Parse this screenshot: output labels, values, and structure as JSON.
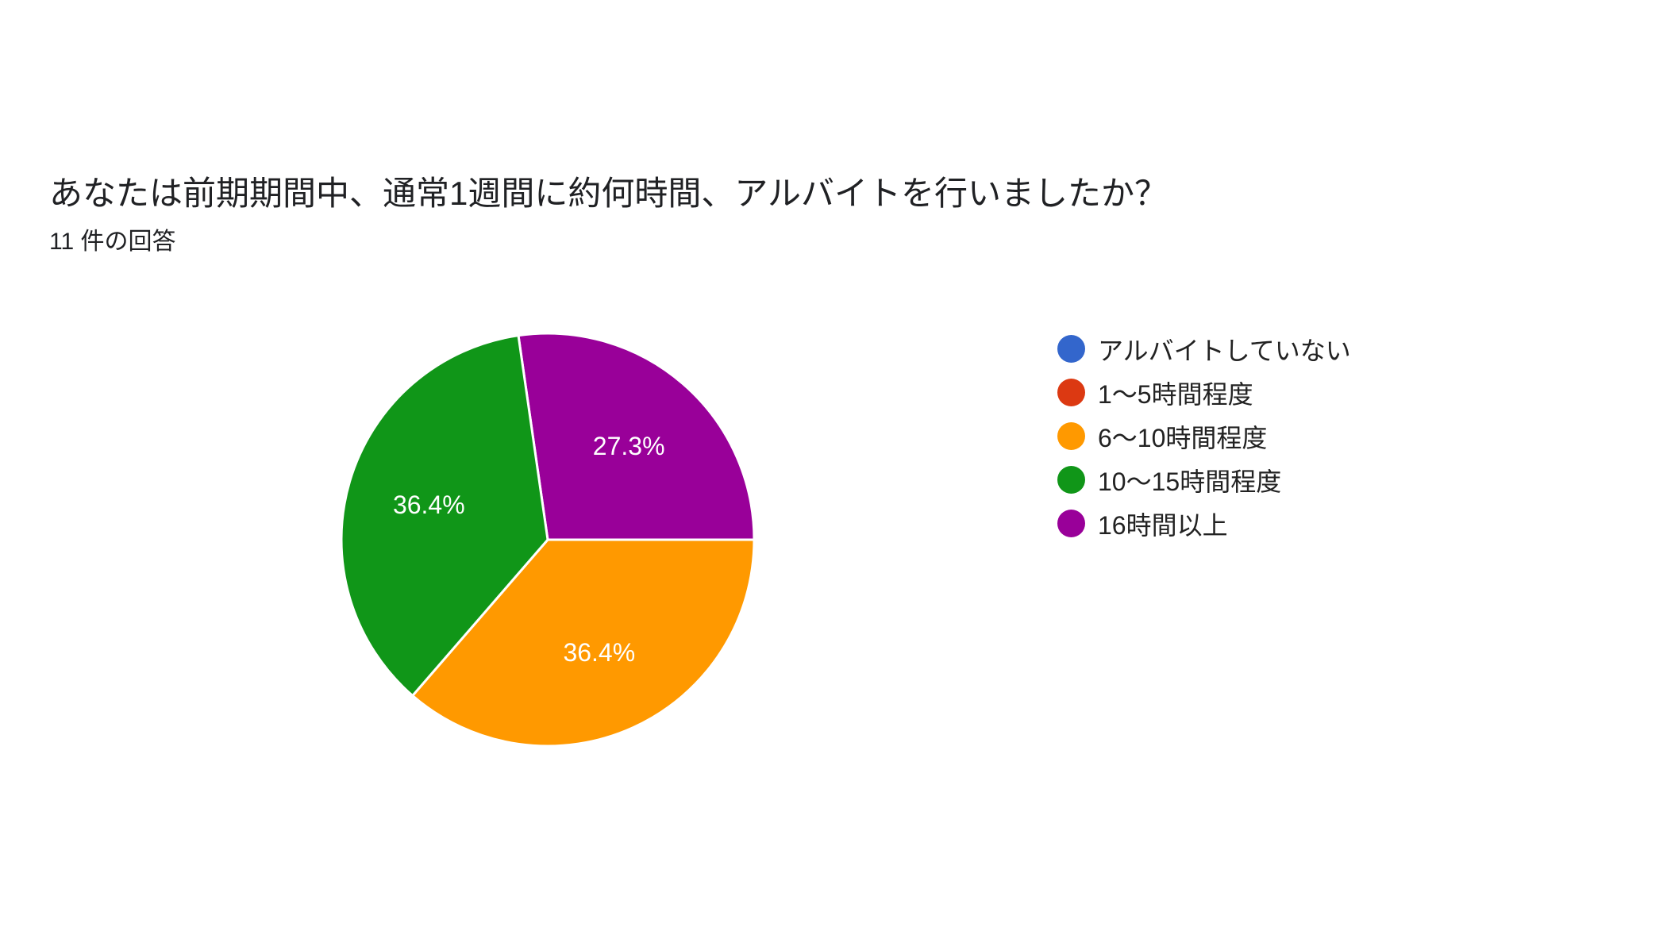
{
  "question": {
    "title": "あなたは前期期間中、通常1週間に約何時間、アルバイトを行いましたか？",
    "response_count": "11 件の回答"
  },
  "chart_data": {
    "type": "pie",
    "total_responses": 11,
    "slices": [
      {
        "label": "アルバイトしていない",
        "value": 0,
        "percent": 0.0,
        "percent_label": "",
        "color": "#3366cc"
      },
      {
        "label": "1～5時間程度",
        "value": 0,
        "percent": 0.0,
        "percent_label": "",
        "color": "#dc3912"
      },
      {
        "label": "6～10時間程度",
        "value": 4,
        "percent": 36.4,
        "percent_label": "36.4%",
        "color": "#ff9900"
      },
      {
        "label": "10～15時間程度",
        "value": 4,
        "percent": 36.4,
        "percent_label": "36.4%",
        "color": "#109618"
      },
      {
        "label": "16時間以上",
        "value": 3,
        "percent": 27.3,
        "percent_label": "27.3%",
        "color": "#990099"
      }
    ],
    "legend_position": "right"
  }
}
